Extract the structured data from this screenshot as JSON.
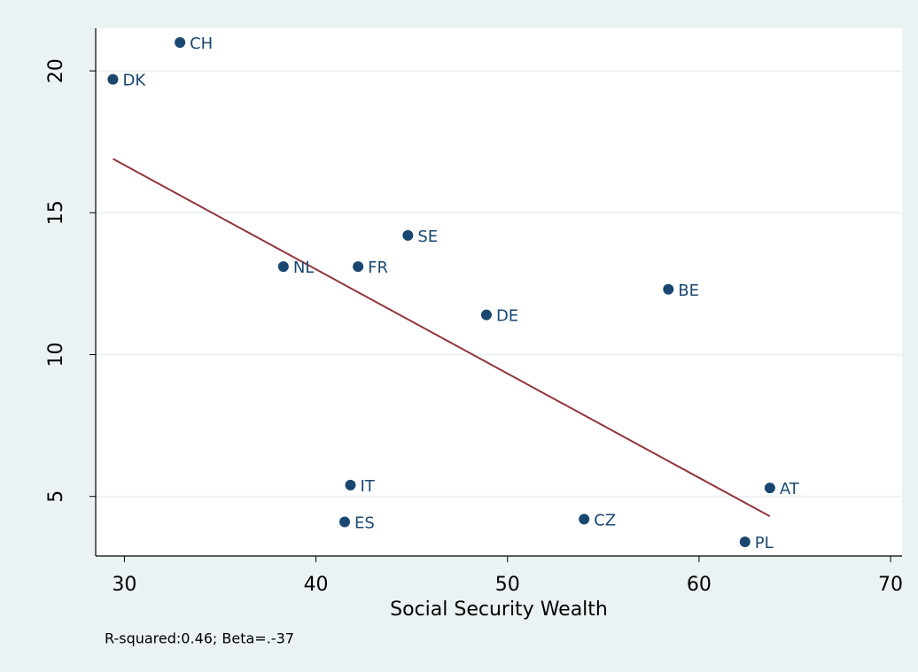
{
  "chart_data": {
    "type": "scatter",
    "labels": [
      "CH",
      "DK",
      "SE",
      "NL",
      "FR",
      "BE",
      "DE",
      "IT",
      "ES",
      "CZ",
      "AT",
      "PL"
    ],
    "x": [
      32.9,
      29.4,
      44.8,
      38.3,
      42.2,
      58.4,
      48.9,
      41.8,
      41.5,
      54.0,
      63.7,
      62.4
    ],
    "y": [
      21.0,
      19.7,
      14.2,
      13.1,
      13.1,
      12.3,
      11.4,
      5.4,
      4.1,
      4.2,
      5.3,
      3.4
    ],
    "color": "#1a476f",
    "fit_line": {
      "x": [
        29.4,
        63.7
      ],
      "y": [
        16.9,
        4.3
      ],
      "color": "#90353b"
    },
    "xlim": [
      28.5,
      70.6
    ],
    "ylim": [
      2.9,
      21.5
    ],
    "xticks": [
      30,
      40,
      50,
      60,
      70
    ],
    "yticks": [
      5,
      10,
      15,
      20
    ],
    "grid": true,
    "xlabel": "Social Security Wealth",
    "note": "R-squared:0.46; Beta=.-37"
  }
}
